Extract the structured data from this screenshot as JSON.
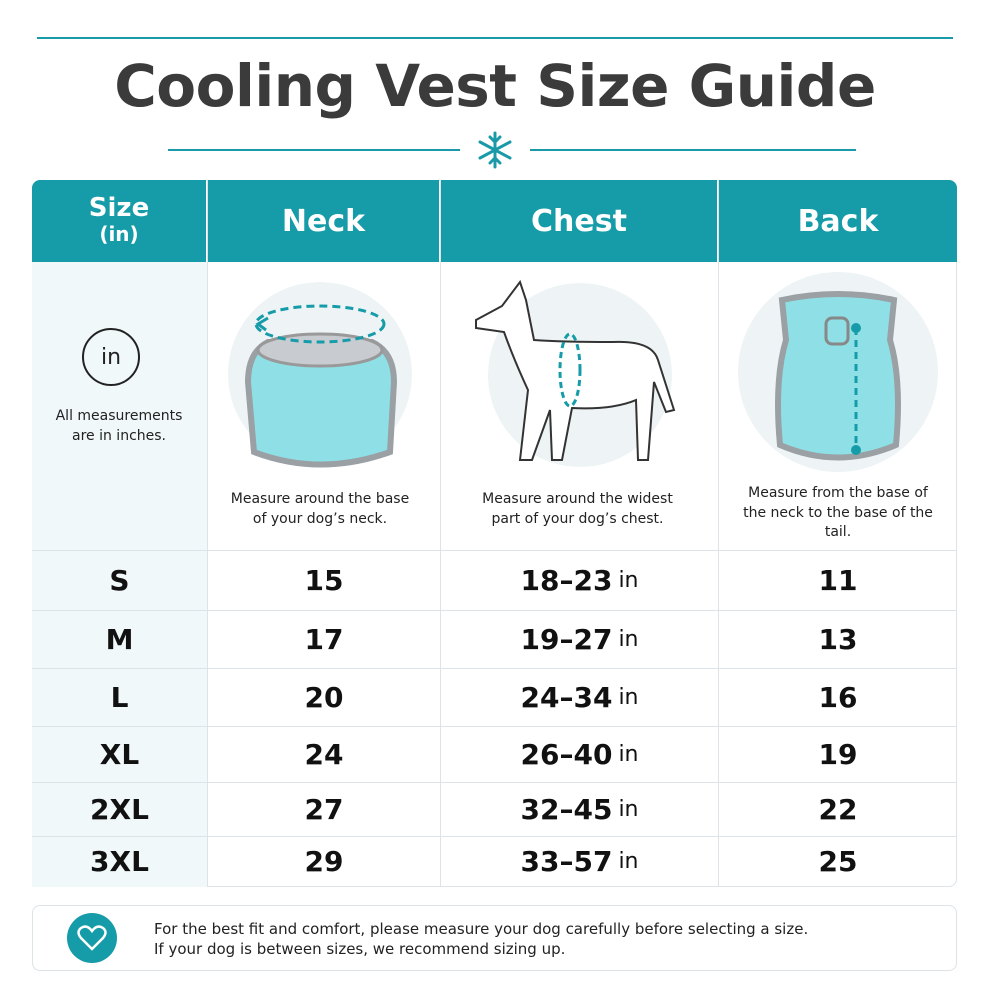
{
  "header": {
    "title": "Cooling Vest Size Guide"
  },
  "table": {
    "columns": {
      "size": "Size",
      "size_unit": "(in)",
      "neck": "Neck",
      "chest": "Chest",
      "back": "Back"
    },
    "info": {
      "badge": "in",
      "note": "All measurements are in inches."
    },
    "descriptions": {
      "neck": "Measure around the base of your dog’s neck.",
      "chest": "Measure around the widest part of your dog’s chest.",
      "back": "Measure from the base of the neck to the base of the tail."
    },
    "rows": [
      {
        "size": "S",
        "neck": 15,
        "chest": "18–23",
        "chest_unit": "in",
        "back": 11
      },
      {
        "size": "M",
        "neck": 17,
        "chest": "19–27",
        "chest_unit": "in",
        "back": 13
      },
      {
        "size": "L",
        "neck": 20,
        "chest": "24–34",
        "chest_unit": "in",
        "back": 16
      },
      {
        "size": "XL",
        "neck": 24,
        "chest": "26–40",
        "chest_unit": "in",
        "back": 19
      },
      {
        "size": "2XL",
        "neck": 27,
        "chest": "32–45",
        "chest_unit": "in",
        "back": 22
      },
      {
        "size": "3XL",
        "neck": 29,
        "chest": "33–57",
        "chest_unit": "in",
        "back": 25
      }
    ]
  },
  "footer": {
    "lines": [
      "For the best fit and comfort, please measure your dog carefully before selecting a size.",
      "If your dog is between sizes, we recommend sizing up."
    ]
  }
}
